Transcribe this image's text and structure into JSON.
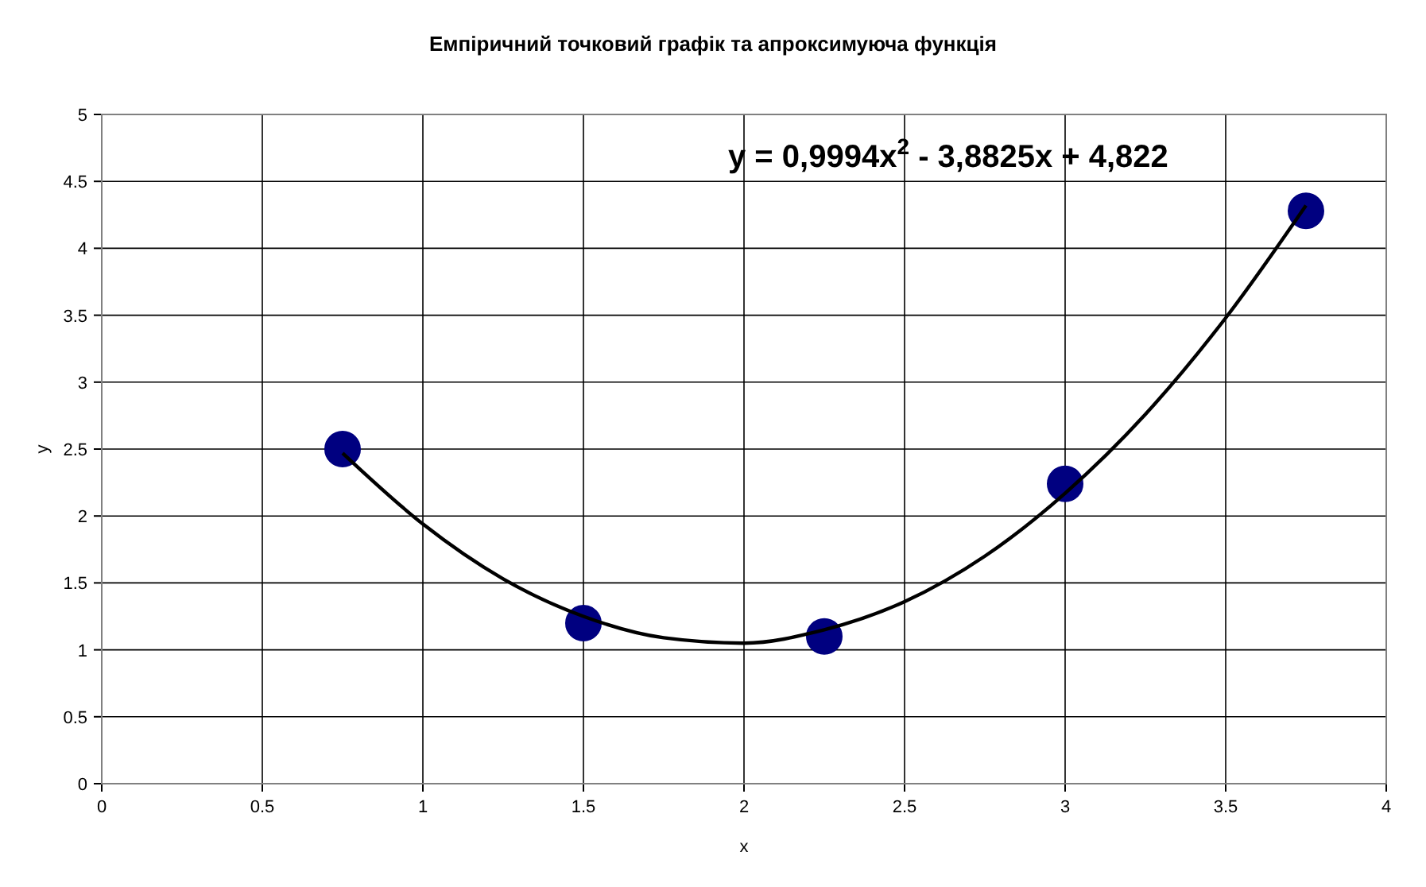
{
  "chart_data": {
    "type": "scatter",
    "title": "Емпіричний точковий графік та апроксимуюча функція",
    "xlabel": "x",
    "ylabel": "y",
    "annotations": [
      "y = 0,9994x$^{2}$ - 3,8825x + 4,822"
    ],
    "xlim": [
      0,
      4
    ],
    "xticks": [
      0,
      0.5,
      1,
      1.5,
      2,
      2.5,
      3,
      3.5,
      4
    ],
    "ylim": [
      0,
      5
    ],
    "yticks": [
      0,
      0.5,
      1,
      1.5,
      2,
      2.5,
      3,
      3.5,
      4,
      4.5,
      5
    ],
    "grid": true,
    "series": [
      {
        "type": "line",
        "color": "#000000",
        "marker": "none",
        "line_style": "solid",
        "x": [
          0.75,
          1,
          1.25,
          1.5,
          1.75,
          2,
          2.25,
          2.5,
          2.75,
          3,
          3.25,
          3.5,
          3.75
        ],
        "values": [
          2.47,
          1.94,
          1.53,
          1.25,
          1.09,
          1.05,
          1.15,
          1.36,
          1.7,
          2.17,
          2.76,
          3.48,
          4.32
        ]
      },
      {
        "color": "#000080",
        "marker": "circle",
        "x": [
          0.75,
          1.5,
          2.25,
          3,
          3.75
        ],
        "values": [
          2.5,
          1.2,
          1.1,
          2.24,
          4.28
        ]
      }
    ]
  }
}
